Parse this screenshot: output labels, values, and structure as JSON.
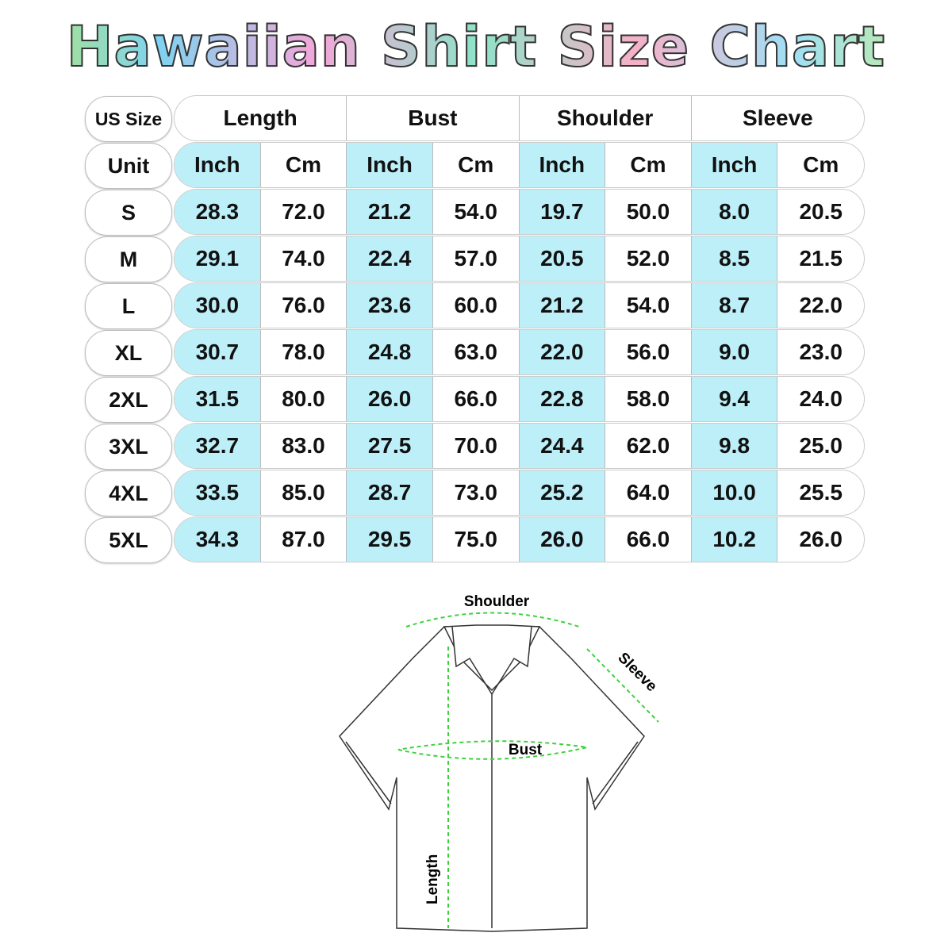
{
  "title": "Hawaiian Shirt Size Chart",
  "header": {
    "size_label": "US Size",
    "unit_label": "Unit",
    "groups": [
      "Length",
      "Bust",
      "Shoulder",
      "Sleeve"
    ],
    "units": [
      "Inch",
      "Cm"
    ]
  },
  "rows": [
    {
      "size": "S",
      "values": [
        "28.3",
        "72.0",
        "21.2",
        "54.0",
        "19.7",
        "50.0",
        "8.0",
        "20.5"
      ]
    },
    {
      "size": "M",
      "values": [
        "29.1",
        "74.0",
        "22.4",
        "57.0",
        "20.5",
        "52.0",
        "8.5",
        "21.5"
      ]
    },
    {
      "size": "L",
      "values": [
        "30.0",
        "76.0",
        "23.6",
        "60.0",
        "21.2",
        "54.0",
        "8.7",
        "22.0"
      ]
    },
    {
      "size": "XL",
      "values": [
        "30.7",
        "78.0",
        "24.8",
        "63.0",
        "22.0",
        "56.0",
        "9.0",
        "23.0"
      ]
    },
    {
      "size": "2XL",
      "values": [
        "31.5",
        "80.0",
        "26.0",
        "66.0",
        "22.8",
        "58.0",
        "9.4",
        "24.0"
      ]
    },
    {
      "size": "3XL",
      "values": [
        "32.7",
        "83.0",
        "27.5",
        "70.0",
        "24.4",
        "62.0",
        "9.8",
        "25.0"
      ]
    },
    {
      "size": "4XL",
      "values": [
        "33.5",
        "85.0",
        "28.7",
        "73.0",
        "25.2",
        "64.0",
        "10.0",
        "25.5"
      ]
    },
    {
      "size": "5XL",
      "values": [
        "34.3",
        "87.0",
        "29.5",
        "75.0",
        "26.0",
        "66.0",
        "10.2",
        "26.0"
      ]
    }
  ],
  "diagram": {
    "shoulder": "Shoulder",
    "sleeve": "Sleeve",
    "bust": "Bust",
    "length": "Length"
  },
  "colors": {
    "inch_column": "#bdeff8",
    "measure_line": "#3dd13d"
  }
}
